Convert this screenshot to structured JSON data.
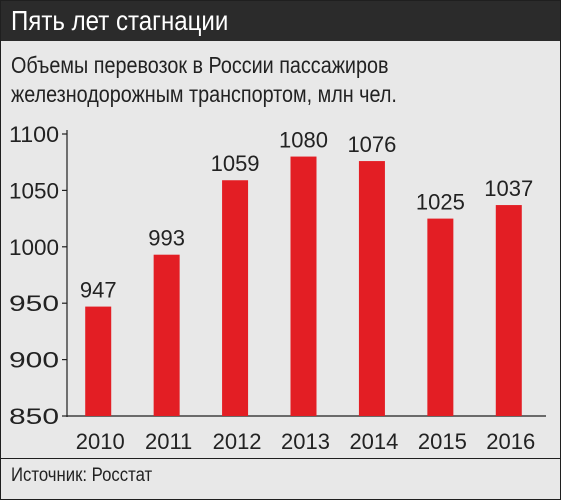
{
  "header": {
    "title": "Пять лет стагнации"
  },
  "subtitle": {
    "line1": "Объемы перевозок в России пассажиров",
    "line2": "железнодорожным транспортом, млн чел."
  },
  "source": {
    "text": "Источник: Росстат"
  },
  "colors": {
    "bar": "#e31e24",
    "header_bg": "#2b2b2b",
    "background": "#e8e8e8"
  },
  "chart_data": {
    "type": "bar",
    "categories": [
      "2010",
      "2011",
      "2012",
      "2013",
      "2014",
      "2015",
      "2016"
    ],
    "values": [
      947,
      993,
      1059,
      1080,
      1076,
      1025,
      1037
    ],
    "ylim": [
      850,
      1100
    ],
    "yticks": [
      850,
      900,
      950,
      1000,
      1050,
      1100
    ],
    "grid": false,
    "data_labels": true
  }
}
